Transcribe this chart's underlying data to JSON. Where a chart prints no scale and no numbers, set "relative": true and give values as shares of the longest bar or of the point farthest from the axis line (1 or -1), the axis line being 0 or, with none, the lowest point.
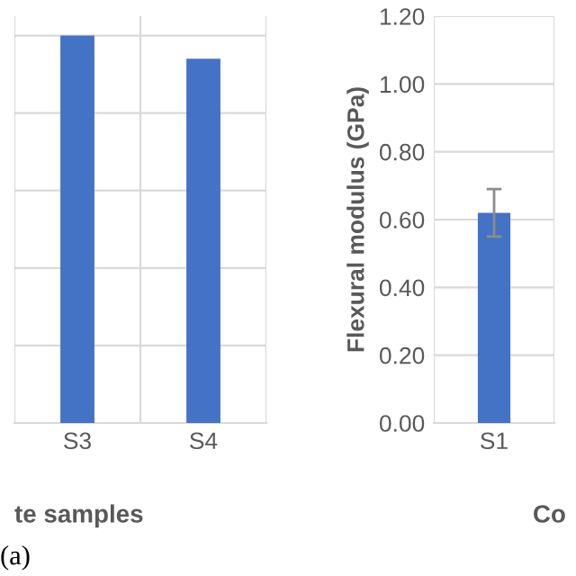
{
  "chart_data": [
    {
      "type": "bar",
      "relative": true,
      "categories": [
        "S3",
        "S4"
      ],
      "xlabel": "te samples",
      "annotations": [
        "(a)"
      ],
      "series": [
        {
          "color": "#4472c4",
          "values": [
            1,
            0.94
          ]
        }
      ],
      "grid": true
    },
    {
      "type": "bar",
      "categories": [
        "S1"
      ],
      "xlabel": "Co",
      "ylabel": "Flexural modulus (GPa)",
      "ylim": [
        0,
        1.2
      ],
      "yticks": [
        {
          "value": 0,
          "label": "0.00"
        },
        {
          "value": 0.2,
          "label": "0.20"
        },
        {
          "value": 0.4,
          "label": "0.40"
        },
        {
          "value": 0.6,
          "label": "0.60"
        },
        {
          "value": 0.8,
          "label": "0.80"
        },
        {
          "value": 1.0,
          "label": "1.00"
        },
        {
          "value": 1.2,
          "label": "1.20"
        }
      ],
      "series": [
        {
          "color": "#4472c4",
          "values": [
            0.62
          ],
          "errors": [
            0.07
          ]
        }
      ],
      "grid": true
    }
  ]
}
